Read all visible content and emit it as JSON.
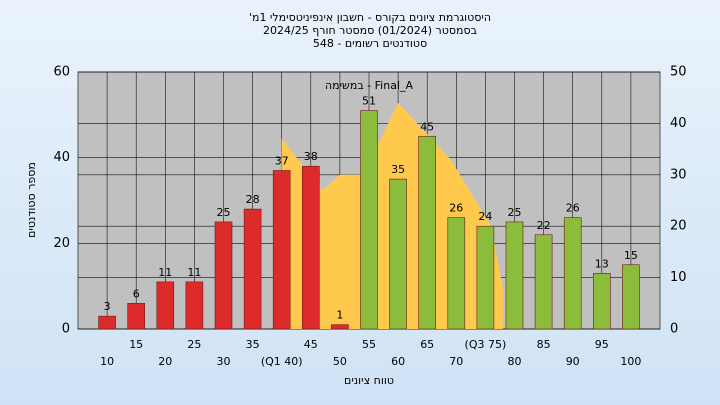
{
  "chart_data": {
    "type": "bar",
    "title": [
      "היסטוגרמת ציונים בקורס - חשבון אינפיניטסימלי 1מ'",
      "בסמסטר (01/2024) סמסטר חורף 2024/25",
      "סטודנטים רשומים - 548"
    ],
    "annotation": "Final_A - במשימה",
    "xlabel": "טווח ציונים",
    "ylabel": "מספר סטודנטים",
    "x": [
      10,
      15,
      20,
      25,
      30,
      35,
      40,
      45,
      50,
      55,
      60,
      65,
      70,
      75,
      80,
      85,
      90,
      95,
      100
    ],
    "values": [
      3,
      6,
      11,
      11,
      25,
      28,
      37,
      38,
      1,
      51,
      35,
      45,
      26,
      24,
      25,
      22,
      26,
      13,
      15
    ],
    "colors": [
      "#dd2b2b",
      "#dd2b2b",
      "#dd2b2b",
      "#dd2b2b",
      "#dd2b2b",
      "#dd2b2b",
      "#dd2b2b",
      "#dd2b2b",
      "#dd2b2b",
      "#8cbc3c",
      "#8cbc3c",
      "#8cbc3c",
      "#8cbc3c",
      "#8cbc3c",
      "#8cbc3c",
      "#8cbc3c",
      "#8cbc3c",
      "#8cbc3c",
      "#8cbc3c"
    ],
    "area": {
      "x": [
        40,
        47,
        50,
        54,
        60,
        69,
        76,
        78
      ],
      "values": [
        37,
        27,
        30,
        30,
        44,
        33,
        20,
        8
      ],
      "axis": "y2",
      "color": "#ffc94d"
    },
    "xlim": [
      5,
      105
    ],
    "xticks": [
      10,
      15,
      20,
      25,
      30,
      35,
      {
        "value": 40,
        "label": "(Q1 40)"
      },
      45,
      50,
      55,
      60,
      65,
      70,
      {
        "value": 75,
        "label": "(Q3 75)"
      },
      80,
      85,
      90,
      95,
      100
    ],
    "ylim": [
      0,
      60
    ],
    "yticks": [
      0,
      20,
      40,
      60
    ],
    "y2lim": [
      0,
      50
    ],
    "y2ticks": [
      0,
      10,
      20,
      30,
      40,
      50
    ],
    "grid": true
  }
}
